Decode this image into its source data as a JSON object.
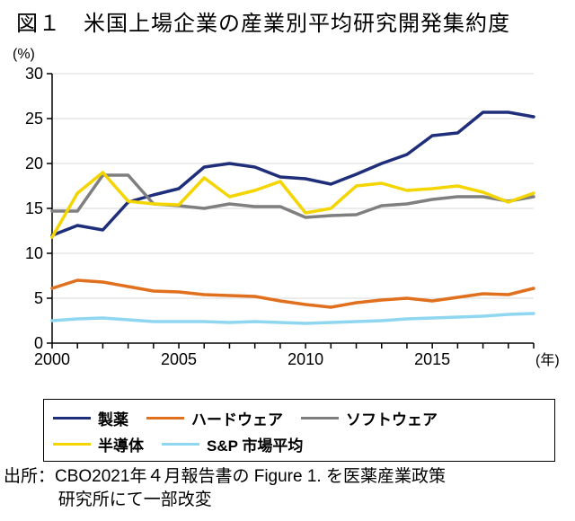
{
  "title": "図１　米国上場企業の産業別平均研究開発集約度",
  "y_unit": "(%)",
  "x_unit": "(年)",
  "source_line1": "出所：CBO2021年４月報告書の Figure 1. を医薬産業政策",
  "source_line2": "研究所にて一部改変",
  "chart": {
    "type": "line",
    "background_color": "#ffffff",
    "axis_color": "#000000",
    "grid_color": "#d9d9d9",
    "label_fontsize": 18,
    "title_fontsize": 24,
    "legend_fontsize": 17,
    "years": [
      2000,
      2001,
      2002,
      2003,
      2004,
      2005,
      2006,
      2007,
      2008,
      2009,
      2010,
      2011,
      2012,
      2013,
      2014,
      2015,
      2016,
      2017,
      2018,
      2019
    ],
    "xlim": [
      2000,
      2019
    ],
    "ylim": [
      0,
      30
    ],
    "ytick_step": 5,
    "xtick_step": 5,
    "line_width": 3.5,
    "series": [
      {
        "key": "pharma",
        "label": "製薬",
        "color": "#1f2e7a",
        "values": [
          12.0,
          13.1,
          12.6,
          15.7,
          16.5,
          17.2,
          19.6,
          20.0,
          19.6,
          18.5,
          18.3,
          17.7,
          18.8,
          20.0,
          21.0,
          23.1,
          23.4,
          25.7,
          25.7,
          25.2
        ]
      },
      {
        "key": "hardware",
        "label": "ハードウェア",
        "color": "#e0701e",
        "values": [
          6.1,
          7.0,
          6.8,
          6.3,
          5.8,
          5.7,
          5.4,
          5.3,
          5.2,
          4.7,
          4.3,
          4.0,
          4.5,
          4.8,
          5.0,
          4.7,
          5.1,
          5.5,
          5.4,
          6.1
        ]
      },
      {
        "key": "software",
        "label": "ソフトウェア",
        "color": "#7f7f7f",
        "values": [
          14.7,
          14.7,
          18.7,
          18.7,
          15.5,
          15.3,
          15.0,
          15.5,
          15.2,
          15.2,
          14.0,
          14.2,
          14.3,
          15.3,
          15.5,
          16.0,
          16.3,
          16.3,
          15.8,
          16.3
        ]
      },
      {
        "key": "semi",
        "label": "半導体",
        "color": "#f4d500",
        "values": [
          11.8,
          16.7,
          19.0,
          15.8,
          15.5,
          15.4,
          18.4,
          16.3,
          17.0,
          18.0,
          14.5,
          15.0,
          17.5,
          17.8,
          17.0,
          17.2,
          17.5,
          16.8,
          15.7,
          16.7
        ]
      },
      {
        "key": "sp",
        "label": "S&P 市場平均",
        "color": "#8fd7f0",
        "values": [
          2.5,
          2.7,
          2.8,
          2.6,
          2.4,
          2.4,
          2.4,
          2.3,
          2.4,
          2.3,
          2.2,
          2.3,
          2.4,
          2.5,
          2.7,
          2.8,
          2.9,
          3.0,
          3.2,
          3.3
        ]
      }
    ]
  }
}
